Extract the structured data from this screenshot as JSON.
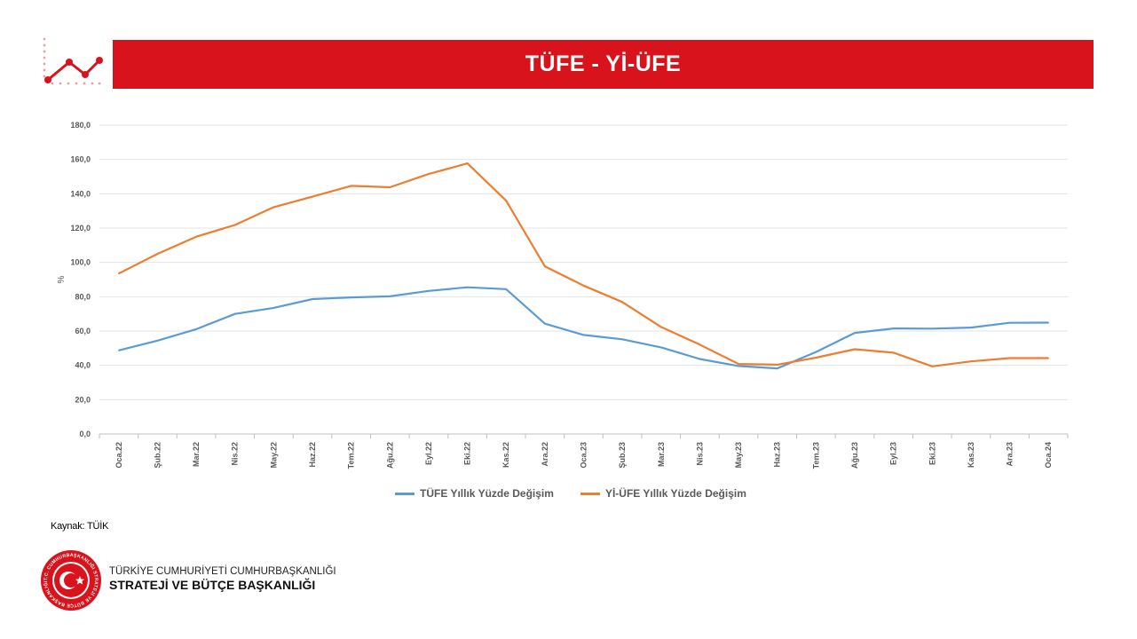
{
  "header": {
    "title": "TÜFE - Yİ-ÜFE",
    "accent_color": "#d9131b",
    "icon": "line-chart-icon"
  },
  "chart_data": {
    "type": "line",
    "title": "",
    "xlabel": "",
    "ylabel": "%",
    "ylim": [
      0,
      180
    ],
    "yticks": [
      0,
      20,
      40,
      60,
      80,
      100,
      120,
      140,
      160,
      180
    ],
    "ytick_labels": [
      "0,0",
      "20,0",
      "40,0",
      "60,0",
      "80,0",
      "100,0",
      "120,0",
      "140,0",
      "160,0",
      "180,0"
    ],
    "grid": true,
    "legend_position": "bottom",
    "categories": [
      "Oca.22",
      "Şub.22",
      "Mar.22",
      "Nis.22",
      "May.22",
      "Haz.22",
      "Tem.22",
      "Ağu.22",
      "Eyl.22",
      "Eki.22",
      "Kas.22",
      "Ara.22",
      "Oca.23",
      "Şub.23",
      "Mar.23",
      "Nis.23",
      "May.23",
      "Haz.23",
      "Tem.23",
      "Ağu.23",
      "Eyl.23",
      "Eki.23",
      "Kas.23",
      "Ara.23",
      "Oca.24"
    ],
    "series": [
      {
        "name": "TÜFE Yıllık Yüzde Değişim",
        "color": "#5b9bd5",
        "values": [
          48.7,
          54.4,
          61.1,
          70.0,
          73.5,
          78.6,
          79.6,
          80.2,
          83.4,
          85.5,
          84.4,
          64.3,
          57.7,
          55.2,
          50.5,
          43.7,
          39.6,
          38.2,
          47.8,
          58.9,
          61.5,
          61.4,
          62.0,
          64.8,
          64.9
        ]
      },
      {
        "name": "Yİ-ÜFE Yıllık Yüzde Değişim",
        "color": "#ed7d31",
        "values": [
          93.5,
          105.0,
          115.0,
          121.8,
          132.2,
          138.3,
          144.6,
          143.8,
          151.5,
          157.7,
          136.0,
          97.7,
          86.5,
          76.9,
          62.4,
          52.1,
          40.8,
          40.4,
          44.5,
          49.4,
          47.4,
          39.4,
          42.3,
          44.2,
          44.2
        ]
      }
    ]
  },
  "source": "Kaynak: TÜİK",
  "footer": {
    "line1": "TÜRKİYE CUMHURİYETİ CUMHURBAŞKANLIĞI",
    "line2": "STRATEJİ VE BÜTÇE BAŞKANLIĞI",
    "seal_text": "T.C. CUMHURBAŞKANLIĞI STRATEJİ VE BÜTÇE BAŞKANLIĞI",
    "seal_icon": "crescent-star-seal-icon"
  }
}
